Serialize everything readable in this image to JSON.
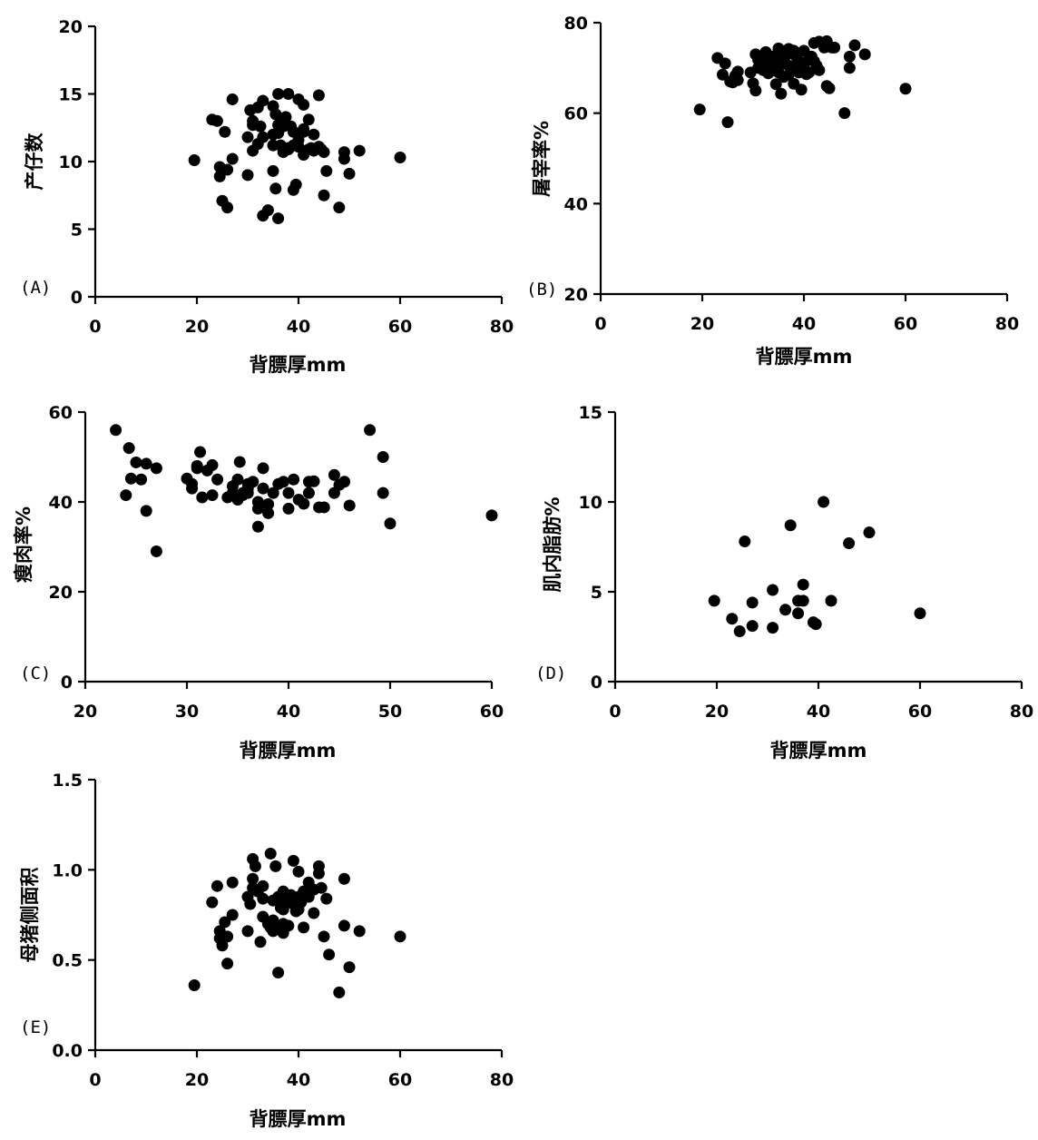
{
  "chart_data": [
    {
      "panel": "(A)",
      "type": "scatter",
      "xlabel": "背膘厚mm",
      "ylabel": "产仔数",
      "xlim": [
        0,
        80
      ],
      "ylim": [
        0,
        20
      ],
      "xticks": [
        0,
        20,
        40,
        60,
        80
      ],
      "yticks": [
        0,
        5,
        10,
        15,
        20
      ],
      "ytick_labels": [
        "0",
        "5",
        "10",
        "15",
        "20"
      ],
      "points": [
        [
          19.5,
          10.1
        ],
        [
          23,
          13.1
        ],
        [
          24,
          13.0
        ],
        [
          24.5,
          8.9
        ],
        [
          24.5,
          9.6
        ],
        [
          25,
          7.1
        ],
        [
          25.5,
          12.2
        ],
        [
          26,
          9.4
        ],
        [
          26,
          6.6
        ],
        [
          27,
          14.6
        ],
        [
          27,
          10.2
        ],
        [
          30,
          11.8
        ],
        [
          30,
          9.0
        ],
        [
          30.5,
          13.8
        ],
        [
          31,
          13.0
        ],
        [
          31,
          12.7
        ],
        [
          31,
          10.8
        ],
        [
          32,
          14.0
        ],
        [
          32,
          11.3
        ],
        [
          32.5,
          12.6
        ],
        [
          33,
          14.5
        ],
        [
          33,
          11.8
        ],
        [
          33,
          6.0
        ],
        [
          34,
          6.4
        ],
        [
          35,
          14.1
        ],
        [
          35,
          12.0
        ],
        [
          35,
          11.2
        ],
        [
          35,
          9.3
        ],
        [
          35.5,
          13.5
        ],
        [
          35.5,
          8.0
        ],
        [
          36,
          15.0
        ],
        [
          36,
          12.7
        ],
        [
          36,
          12.1
        ],
        [
          36,
          5.8
        ],
        [
          36.5,
          11.2
        ],
        [
          37,
          13.2
        ],
        [
          37,
          12.6
        ],
        [
          37,
          10.7
        ],
        [
          37.5,
          13.3
        ],
        [
          38,
          15.0
        ],
        [
          38,
          11.0
        ],
        [
          38,
          10.9
        ],
        [
          38.5,
          12.6
        ],
        [
          39,
          12.2
        ],
        [
          39,
          11.2
        ],
        [
          39,
          7.9
        ],
        [
          39.5,
          8.3
        ],
        [
          40,
          14.6
        ],
        [
          40,
          11.6
        ],
        [
          40,
          11.1
        ],
        [
          41,
          14.2
        ],
        [
          41,
          12.4
        ],
        [
          41,
          12.2
        ],
        [
          41,
          10.5
        ],
        [
          42,
          13.1
        ],
        [
          42,
          10.9
        ],
        [
          42.5,
          11.0
        ],
        [
          43,
          12.0
        ],
        [
          43,
          10.8
        ],
        [
          44,
          14.9
        ],
        [
          44,
          11.1
        ],
        [
          44.5,
          10.9
        ],
        [
          45,
          10.7
        ],
        [
          45,
          7.5
        ],
        [
          45.5,
          9.3
        ],
        [
          48,
          6.6
        ],
        [
          49,
          10.2
        ],
        [
          49,
          10.7
        ],
        [
          50,
          9.1
        ],
        [
          52,
          10.8
        ],
        [
          60,
          10.3
        ]
      ]
    },
    {
      "panel": "(B)",
      "type": "scatter",
      "xlabel": "背膘厚mm",
      "ylabel": "屠宰率%",
      "xlim": [
        0,
        80
      ],
      "ylim": [
        20,
        80
      ],
      "xticks": [
        0,
        20,
        40,
        60,
        80
      ],
      "yticks": [
        20,
        40,
        60,
        80
      ],
      "ytick_labels": [
        "20",
        "40",
        "60",
        "80"
      ],
      "points": [
        [
          19.5,
          60.8
        ],
        [
          23,
          72.2
        ],
        [
          24,
          68.5
        ],
        [
          24.5,
          71.0
        ],
        [
          25,
          58.0
        ],
        [
          25.5,
          67.0
        ],
        [
          26,
          66.8
        ],
        [
          26.5,
          68.3
        ],
        [
          27,
          69.2
        ],
        [
          27,
          67.3
        ],
        [
          29.5,
          69.0
        ],
        [
          30,
          66.6
        ],
        [
          30.5,
          65.0
        ],
        [
          30.5,
          73.0
        ],
        [
          31,
          71.8
        ],
        [
          31,
          70.0
        ],
        [
          32,
          72.0
        ],
        [
          32,
          69.5
        ],
        [
          32.5,
          73.5
        ],
        [
          33,
          71.0
        ],
        [
          33,
          68.8
        ],
        [
          34,
          70.5
        ],
        [
          34,
          72.5
        ],
        [
          34.5,
          66.4
        ],
        [
          35,
          74.3
        ],
        [
          35,
          73.7
        ],
        [
          35,
          71.5
        ],
        [
          35,
          69.0
        ],
        [
          35.5,
          64.3
        ],
        [
          36,
          73.0
        ],
        [
          36,
          71.0
        ],
        [
          36,
          68.0
        ],
        [
          36.5,
          72.8
        ],
        [
          37,
          74.2
        ],
        [
          37,
          70.5
        ],
        [
          37,
          68.5
        ],
        [
          37.5,
          73.5
        ],
        [
          38,
          73.8
        ],
        [
          38,
          70.0
        ],
        [
          38,
          66.5
        ],
        [
          38.5,
          72.5
        ],
        [
          39,
          71.5
        ],
        [
          39,
          69.0
        ],
        [
          39.5,
          65.2
        ],
        [
          40,
          73.8
        ],
        [
          40,
          70.5
        ],
        [
          40.5,
          68.6
        ],
        [
          41,
          72.0
        ],
        [
          41,
          69.0
        ],
        [
          41.5,
          72.5
        ],
        [
          42,
          75.5
        ],
        [
          42,
          71.5
        ],
        [
          42.5,
          70.5
        ],
        [
          43,
          75.8
        ],
        [
          43,
          69.5
        ],
        [
          44,
          74.5
        ],
        [
          44.5,
          75.9
        ],
        [
          44.5,
          66.0
        ],
        [
          45,
          65.5
        ],
        [
          45.5,
          74.5
        ],
        [
          46,
          74.5
        ],
        [
          48,
          60.0
        ],
        [
          49,
          70.0
        ],
        [
          49,
          72.5
        ],
        [
          50,
          75.0
        ],
        [
          52,
          73.0
        ],
        [
          60,
          65.4
        ]
      ]
    },
    {
      "panel": "(C)",
      "type": "scatter",
      "xlabel": "背膘厚mm",
      "ylabel": "瘦肉率%",
      "xlim": [
        20,
        60
      ],
      "ylim": [
        0,
        60
      ],
      "xticks": [
        20,
        30,
        40,
        50,
        60
      ],
      "yticks": [
        0,
        20,
        40,
        60
      ],
      "ytick_labels": [
        "0",
        "20",
        "40",
        "60"
      ],
      "points": [
        [
          23,
          56
        ],
        [
          24,
          41.5
        ],
        [
          24.3,
          52
        ],
        [
          24.5,
          45.2
        ],
        [
          25,
          48.8
        ],
        [
          25.5,
          45
        ],
        [
          26,
          38
        ],
        [
          26,
          48.5
        ],
        [
          27,
          29
        ],
        [
          27,
          47.5
        ],
        [
          30,
          45.2
        ],
        [
          30.5,
          44
        ],
        [
          30.5,
          43
        ],
        [
          31,
          48
        ],
        [
          31,
          47.5
        ],
        [
          31.3,
          51.1
        ],
        [
          31.5,
          41
        ],
        [
          32,
          47
        ],
        [
          32.5,
          41.5
        ],
        [
          32.5,
          48.2
        ],
        [
          33,
          45
        ],
        [
          34,
          41
        ],
        [
          34.5,
          42
        ],
        [
          34.5,
          43.5
        ],
        [
          35,
          40.5
        ],
        [
          35,
          45
        ],
        [
          35.2,
          48.9
        ],
        [
          35.5,
          42
        ],
        [
          35.5,
          41.5
        ],
        [
          36,
          42
        ],
        [
          36,
          43
        ],
        [
          36,
          44
        ],
        [
          36.5,
          44.5
        ],
        [
          37,
          38.5
        ],
        [
          37,
          40
        ],
        [
          37,
          34.5
        ],
        [
          37.5,
          47.5
        ],
        [
          37.5,
          43
        ],
        [
          38,
          37.5
        ],
        [
          38,
          39.5
        ],
        [
          38.5,
          42
        ],
        [
          39,
          44
        ],
        [
          39.5,
          44.5
        ],
        [
          40,
          42
        ],
        [
          40,
          38.5
        ],
        [
          40.5,
          45
        ],
        [
          41,
          40.5
        ],
        [
          41.5,
          39.6
        ],
        [
          42,
          42
        ],
        [
          42,
          44.5
        ],
        [
          42.5,
          44.6
        ],
        [
          43,
          38.8
        ],
        [
          43.5,
          38.8
        ],
        [
          44.5,
          46
        ],
        [
          44.5,
          42
        ],
        [
          45,
          43.8
        ],
        [
          45.5,
          44.5
        ],
        [
          46,
          39.2
        ],
        [
          48,
          56
        ],
        [
          49.3,
          42
        ],
        [
          49.3,
          50
        ],
        [
          50,
          35.2
        ],
        [
          60,
          37
        ]
      ]
    },
    {
      "panel": "(D)",
      "type": "scatter",
      "xlabel": "背膘厚mm",
      "ylabel": "肌内脂肪%",
      "xlim": [
        0,
        80
      ],
      "ylim": [
        0,
        15
      ],
      "xticks": [
        0,
        20,
        40,
        60,
        80
      ],
      "yticks": [
        0,
        5,
        10,
        15
      ],
      "ytick_labels": [
        "0",
        "5",
        "10",
        "15"
      ],
      "points": [
        [
          19.5,
          4.5
        ],
        [
          23,
          3.5
        ],
        [
          24.5,
          2.8
        ],
        [
          25.5,
          7.8
        ],
        [
          27,
          3.1
        ],
        [
          27,
          4.4
        ],
        [
          31,
          5.1
        ],
        [
          31,
          3.0
        ],
        [
          33.5,
          4.0
        ],
        [
          34.5,
          8.7
        ],
        [
          36,
          3.8
        ],
        [
          36,
          4.5
        ],
        [
          37,
          4.5
        ],
        [
          37,
          5.4
        ],
        [
          39,
          3.3
        ],
        [
          39.5,
          3.2
        ],
        [
          41,
          10.0
        ],
        [
          42.5,
          4.5
        ],
        [
          46,
          7.7
        ],
        [
          50,
          8.3
        ],
        [
          60,
          3.8
        ]
      ]
    },
    {
      "panel": "(E)",
      "type": "scatter",
      "xlabel": "背膘厚mm",
      "ylabel": "母猪侧面积",
      "xlim": [
        0,
        80
      ],
      "ylim": [
        0,
        1.5
      ],
      "xticks": [
        0,
        20,
        40,
        60,
        80
      ],
      "yticks": [
        0,
        0.5,
        1.0,
        1.5
      ],
      "ytick_labels": [
        "0.0",
        "0.5",
        "1.0",
        "1.5"
      ],
      "points": [
        [
          19.5,
          0.36
        ],
        [
          23,
          0.82
        ],
        [
          24,
          0.91
        ],
        [
          24.5,
          0.66
        ],
        [
          24.5,
          0.62
        ],
        [
          25,
          0.58
        ],
        [
          25.5,
          0.71
        ],
        [
          26,
          0.63
        ],
        [
          26,
          0.48
        ],
        [
          27,
          0.93
        ],
        [
          27,
          0.75
        ],
        [
          30,
          0.85
        ],
        [
          30,
          0.66
        ],
        [
          30.5,
          0.81
        ],
        [
          31,
          1.06
        ],
        [
          31,
          0.95
        ],
        [
          31,
          0.9
        ],
        [
          31.5,
          1.02
        ],
        [
          32,
          0.88
        ],
        [
          32.5,
          0.6
        ],
        [
          33,
          0.91
        ],
        [
          33,
          0.84
        ],
        [
          33,
          0.74
        ],
        [
          34,
          0.7
        ],
        [
          34.5,
          0.68
        ],
        [
          34.5,
          1.09
        ],
        [
          35,
          0.83
        ],
        [
          35,
          0.72
        ],
        [
          35,
          0.66
        ],
        [
          35.5,
          1.02
        ],
        [
          36,
          0.85
        ],
        [
          36,
          0.68
        ],
        [
          36,
          0.43
        ],
        [
          36.5,
          0.79
        ],
        [
          37,
          0.88
        ],
        [
          37,
          0.83
        ],
        [
          37,
          0.78
        ],
        [
          37,
          0.7
        ],
        [
          37,
          0.65
        ],
        [
          38,
          0.82
        ],
        [
          38,
          0.69
        ],
        [
          38.5,
          0.86
        ],
        [
          39,
          1.05
        ],
        [
          39,
          0.81
        ],
        [
          39.5,
          0.77
        ],
        [
          40,
          0.99
        ],
        [
          40,
          0.85
        ],
        [
          40,
          0.78
        ],
        [
          40.5,
          0.82
        ],
        [
          41,
          0.68
        ],
        [
          41,
          0.88
        ],
        [
          42,
          0.85
        ],
        [
          42,
          0.93
        ],
        [
          43,
          0.89
        ],
        [
          43,
          0.76
        ],
        [
          44,
          1.02
        ],
        [
          44,
          0.98
        ],
        [
          44.5,
          0.9
        ],
        [
          45,
          0.63
        ],
        [
          45.5,
          0.84
        ],
        [
          46,
          0.53
        ],
        [
          48,
          0.32
        ],
        [
          49,
          0.69
        ],
        [
          49,
          0.95
        ],
        [
          50,
          0.46
        ],
        [
          52,
          0.66
        ],
        [
          60,
          0.63
        ]
      ]
    }
  ]
}
